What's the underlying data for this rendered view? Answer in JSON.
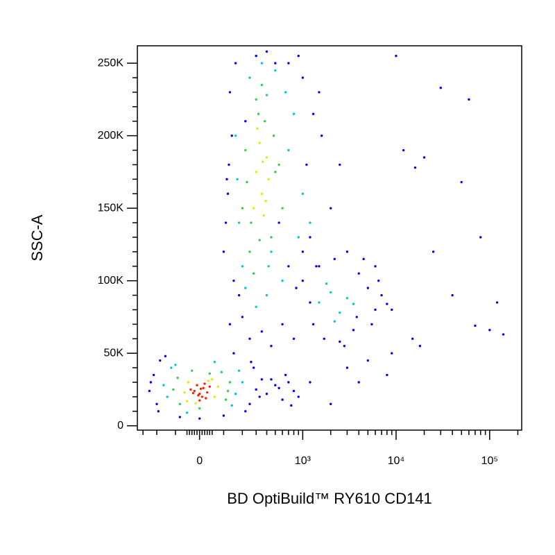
{
  "chart_data": {
    "type": "scatter",
    "xlabel": "BD OptiBuild™ RY610 CD141",
    "ylabel": "SSC-A",
    "xscale": "biexponential",
    "xlim": [
      -350,
      220000
    ],
    "ylim": [
      -3000,
      262000
    ],
    "xticks": [
      0,
      {
        "value": 1000,
        "label": "10³"
      },
      {
        "value": 10000,
        "label": "10⁴"
      },
      {
        "value": 100000,
        "label": "10⁵"
      }
    ],
    "xminorticks": [
      -300,
      -200,
      -100,
      -50,
      -40,
      -30,
      -20,
      -10,
      10,
      20,
      30,
      40,
      50,
      100,
      200,
      300,
      400,
      500,
      600,
      700,
      800,
      900,
      2000,
      3000,
      4000,
      5000,
      6000,
      7000,
      8000,
      9000,
      20000,
      30000,
      40000,
      50000,
      60000,
      70000,
      80000,
      90000,
      200000
    ],
    "yticks": [
      0,
      {
        "value": 50000,
        "label": "50K"
      },
      {
        "value": 100000,
        "label": "100K"
      },
      {
        "value": 150000,
        "label": "150K"
      },
      {
        "value": 200000,
        "label": "200K"
      },
      {
        "value": 250000,
        "label": "250K"
      }
    ],
    "yminorticks": [
      10000,
      20000,
      30000,
      40000,
      60000,
      70000,
      80000,
      90000,
      110000,
      120000,
      130000,
      140000,
      160000,
      170000,
      180000,
      190000,
      210000,
      220000,
      230000,
      240000
    ],
    "series": [
      {
        "color": "#0000ff",
        "x": [
          -250,
          -220,
          -200,
          -180,
          250,
          300,
          350,
          280,
          -150,
          220,
          -240,
          330,
          150,
          0,
          -80,
          100,
          -190,
          260,
          400,
          500,
          600,
          700,
          800,
          900,
          650,
          750,
          550,
          450,
          100,
          120,
          140,
          110,
          130,
          160,
          150,
          125,
          700,
          1000,
          1300,
          1600,
          1100,
          900,
          800,
          1500,
          1200,
          2000,
          600,
          200,
          250,
          300,
          400,
          500,
          350,
          450,
          550,
          700,
          180,
          220,
          2500,
          1400,
          1000,
          850,
          130,
          115,
          1000,
          1300,
          1700,
          2500,
          3500,
          4000,
          5000,
          6000,
          7000,
          8000,
          4500,
          3000,
          2200,
          1500,
          5500,
          6500,
          3800,
          2800,
          1200,
          9000,
          20000,
          30000,
          10000,
          6000,
          12000,
          15000,
          60000,
          80000,
          120000,
          140000,
          25000,
          70000,
          3000,
          4000,
          5000,
          8000,
          2000,
          1200,
          18000,
          50000,
          100000,
          16000,
          9000,
          40000
        ],
        "values": [
          24000,
          35000,
          15000,
          45000,
          15000,
          25000,
          32000,
          40000,
          48000,
          10000,
          30000,
          20000,
          50000,
          5000,
          6000,
          7000,
          10000,
          44000,
          22000,
          28000,
          18000,
          30000,
          24000,
          20000,
          35000,
          14000,
          26000,
          32000,
          120000,
          160000,
          200000,
          140000,
          230000,
          250000,
          100000,
          180000,
          250000,
          240000,
          215000,
          200000,
          180000,
          255000,
          60000,
          230000,
          130000,
          150000,
          70000,
          75000,
          60000,
          255000,
          258000,
          250000,
          65000,
          55000,
          140000,
          110000,
          90000,
          210000,
          180000,
          110000,
          120000,
          95000,
          70000,
          170000,
          100000,
          70000,
          60000,
          58000,
          66000,
          105000,
          95000,
          80000,
          90000,
          84000,
          115000,
          120000,
          115000,
          110000,
          70000,
          100000,
          75000,
          55000,
          85000,
          80000,
          185000,
          233000,
          255000,
          110000,
          190000,
          60000,
          225000,
          130000,
          85000,
          63000,
          120000,
          69000,
          40000,
          30000,
          45000,
          35000,
          15000,
          30000,
          55000,
          168000,
          66000,
          178000,
          50000,
          90000
        ]
      },
      {
        "color": "#00c8d8",
        "x": [
          -160,
          -140,
          160,
          200,
          -120,
          140,
          -50,
          60,
          180,
          -100,
          160,
          180,
          700,
          900,
          250,
          350,
          600,
          800,
          400,
          200,
          1000,
          170,
          500,
          300,
          450,
          650,
          1200,
          220,
          1500,
          2000,
          2500,
          3000,
          1800,
          2200,
          3500
        ],
        "values": [
          28000,
          20000,
          22000,
          30000,
          40000,
          14000,
          9000,
          44000,
          38000,
          42000,
          200000,
          140000,
          190000,
          130000,
          240000,
          250000,
          100000,
          215000,
          90000,
          110000,
          160000,
          170000,
          245000,
          82000,
          120000,
          230000,
          140000,
          95000,
          85000,
          92000,
          78000,
          88000,
          98000,
          72000,
          84000
        ]
      },
      {
        "color": "#30d050",
        "x": [
          -110,
          -90,
          110,
          130,
          -80,
          90,
          0,
          -30,
          40,
          120,
          200,
          250,
          450,
          500,
          220,
          300,
          380,
          420,
          600,
          350,
          280,
          480,
          230,
          330,
          400,
          260,
          550,
          320
        ],
        "values": [
          25000,
          33000,
          18000,
          30000,
          15000,
          37000,
          12000,
          38000,
          36000,
          24000,
          150000,
          120000,
          130000,
          175000,
          190000,
          225000,
          210000,
          110000,
          150000,
          235000,
          105000,
          200000,
          168000,
          128000,
          228000,
          140000,
          180000,
          215000
        ]
      },
      {
        "color": "#e8e800",
        "x": [
          -60,
          -45,
          60,
          75,
          -50,
          50,
          -15,
          35,
          300,
          350,
          400,
          280,
          330,
          420,
          370,
          310,
          390,
          360
        ],
        "values": [
          23000,
          30000,
          20000,
          27000,
          17000,
          32000,
          15500,
          31000,
          175000,
          160000,
          185000,
          150000,
          195000,
          170000,
          145000,
          205000,
          155000,
          182000
        ]
      },
      {
        "color": "#ff2000",
        "x": [
          -20,
          0,
          15,
          30,
          -10,
          10,
          -35,
          25,
          5,
          -5,
          40,
          -25,
          20,
          0
        ],
        "values": [
          24000,
          22000,
          26000,
          23000,
          28000,
          20000,
          25000,
          19000,
          25500,
          21000,
          27000,
          22500,
          29000,
          17500
        ]
      }
    ]
  }
}
